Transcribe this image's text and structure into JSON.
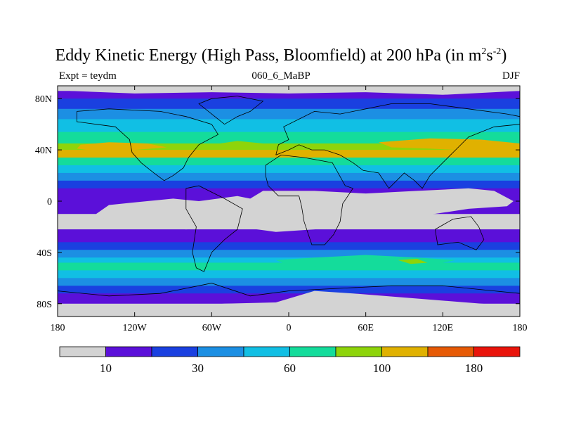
{
  "chart_data": {
    "type": "heatmap",
    "title_main": "Eddy Kinetic Energy (High Pass, Bloomfield) at 200 hPa (in m",
    "title_sup1": "2",
    "title_s": "s",
    "title_sup2": "-2",
    "title_close": ")",
    "left_subtitle": "Expt = teydm",
    "center_subtitle": "060_6_MaBP",
    "right_subtitle": "DJF",
    "x_ticks": [
      {
        "lon": -180,
        "label": "180"
      },
      {
        "lon": -120,
        "label": "120W"
      },
      {
        "lon": -60,
        "label": "60W"
      },
      {
        "lon": 0,
        "label": "0"
      },
      {
        "lon": 60,
        "label": "60E"
      },
      {
        "lon": 120,
        "label": "120E"
      },
      {
        "lon": 180,
        "label": "180"
      }
    ],
    "y_ticks": [
      {
        "lat": 80,
        "label": "80N"
      },
      {
        "lat": 40,
        "label": "40N"
      },
      {
        "lat": 0,
        "label": "0"
      },
      {
        "lat": -40,
        "label": "40S"
      },
      {
        "lat": -80,
        "label": "80S"
      }
    ],
    "xlim": [
      -180,
      180
    ],
    "ylim": [
      -90,
      90
    ],
    "levels": [
      10,
      20,
      30,
      45,
      60,
      80,
      100,
      130,
      180,
      220
    ],
    "colors": [
      "#d3d3d3",
      "#5b10d9",
      "#1a40e0",
      "#1c8fe3",
      "#11bfe4",
      "#14dc9b",
      "#8ed40a",
      "#e0b100",
      "#e65a05",
      "#e9140b"
    ],
    "colorbar_labels": [
      {
        "index": 1,
        "label": "10"
      },
      {
        "index": 3,
        "label": "30"
      },
      {
        "index": 5,
        "label": "60"
      },
      {
        "index": 7,
        "label": "100"
      },
      {
        "index": 9,
        "label": "180"
      }
    ],
    "lat_profile_band_index": [
      {
        "lat": 90,
        "band": 0
      },
      {
        "lat": 86,
        "band": 1
      },
      {
        "lat": 80,
        "band": 2
      },
      {
        "lat": 72,
        "band": 3
      },
      {
        "lat": 64,
        "band": 4
      },
      {
        "lat": 54,
        "band": 5
      },
      {
        "lat": 45,
        "band": 6
      },
      {
        "lat": 40,
        "band": 7
      },
      {
        "lat": 34,
        "band": 5
      },
      {
        "lat": 28,
        "band": 4
      },
      {
        "lat": 22,
        "band": 3
      },
      {
        "lat": 16,
        "band": 2
      },
      {
        "lat": 10,
        "band": 1
      },
      {
        "lat": 0,
        "band": 1
      },
      {
        "lat": -10,
        "band": 0
      },
      {
        "lat": -22,
        "band": 1
      },
      {
        "lat": -32,
        "band": 2
      },
      {
        "lat": -38,
        "band": 3
      },
      {
        "lat": -44,
        "band": 4
      },
      {
        "lat": -48,
        "band": 5
      },
      {
        "lat": -54,
        "band": 4
      },
      {
        "lat": -60,
        "band": 3
      },
      {
        "lat": -66,
        "band": 2
      },
      {
        "lat": -72,
        "band": 1
      },
      {
        "lat": -80,
        "band": 0
      },
      {
        "lat": -90,
        "band": 0
      }
    ]
  }
}
